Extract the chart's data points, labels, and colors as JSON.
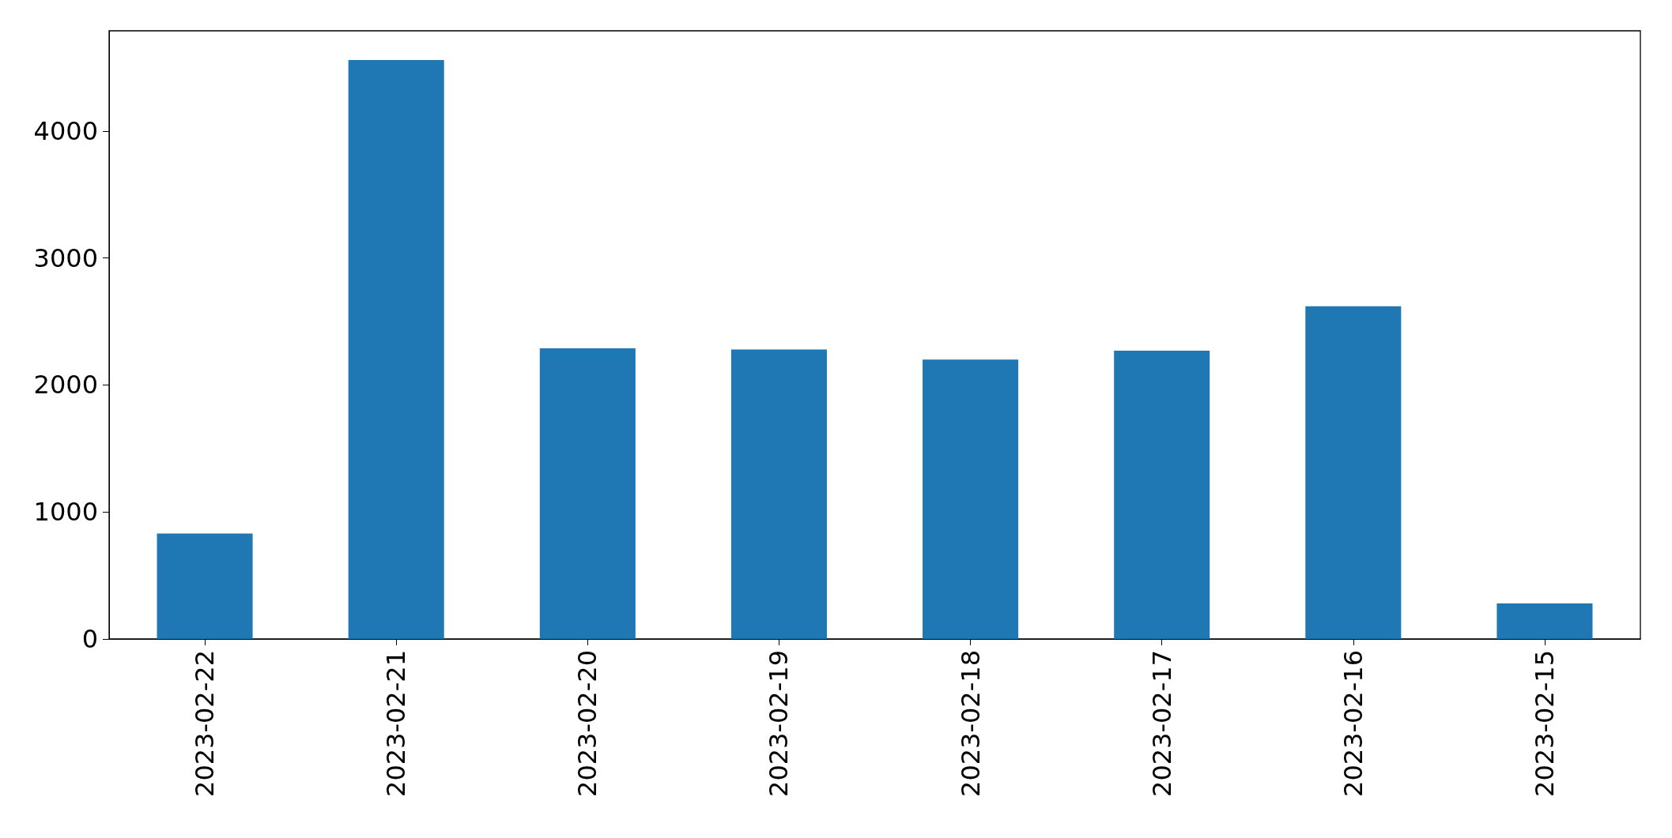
{
  "chart_data": {
    "type": "bar",
    "categories": [
      "2023-02-22",
      "2023-02-21",
      "2023-02-20",
      "2023-02-19",
      "2023-02-18",
      "2023-02-17",
      "2023-02-16",
      "2023-02-15"
    ],
    "values": [
      830,
      4560,
      2290,
      2280,
      2200,
      2270,
      2620,
      280
    ],
    "color": "#1f77b4",
    "ylim": [
      0,
      4790
    ],
    "yticks": [
      0,
      1000,
      2000,
      3000,
      4000
    ],
    "grid": false
  }
}
